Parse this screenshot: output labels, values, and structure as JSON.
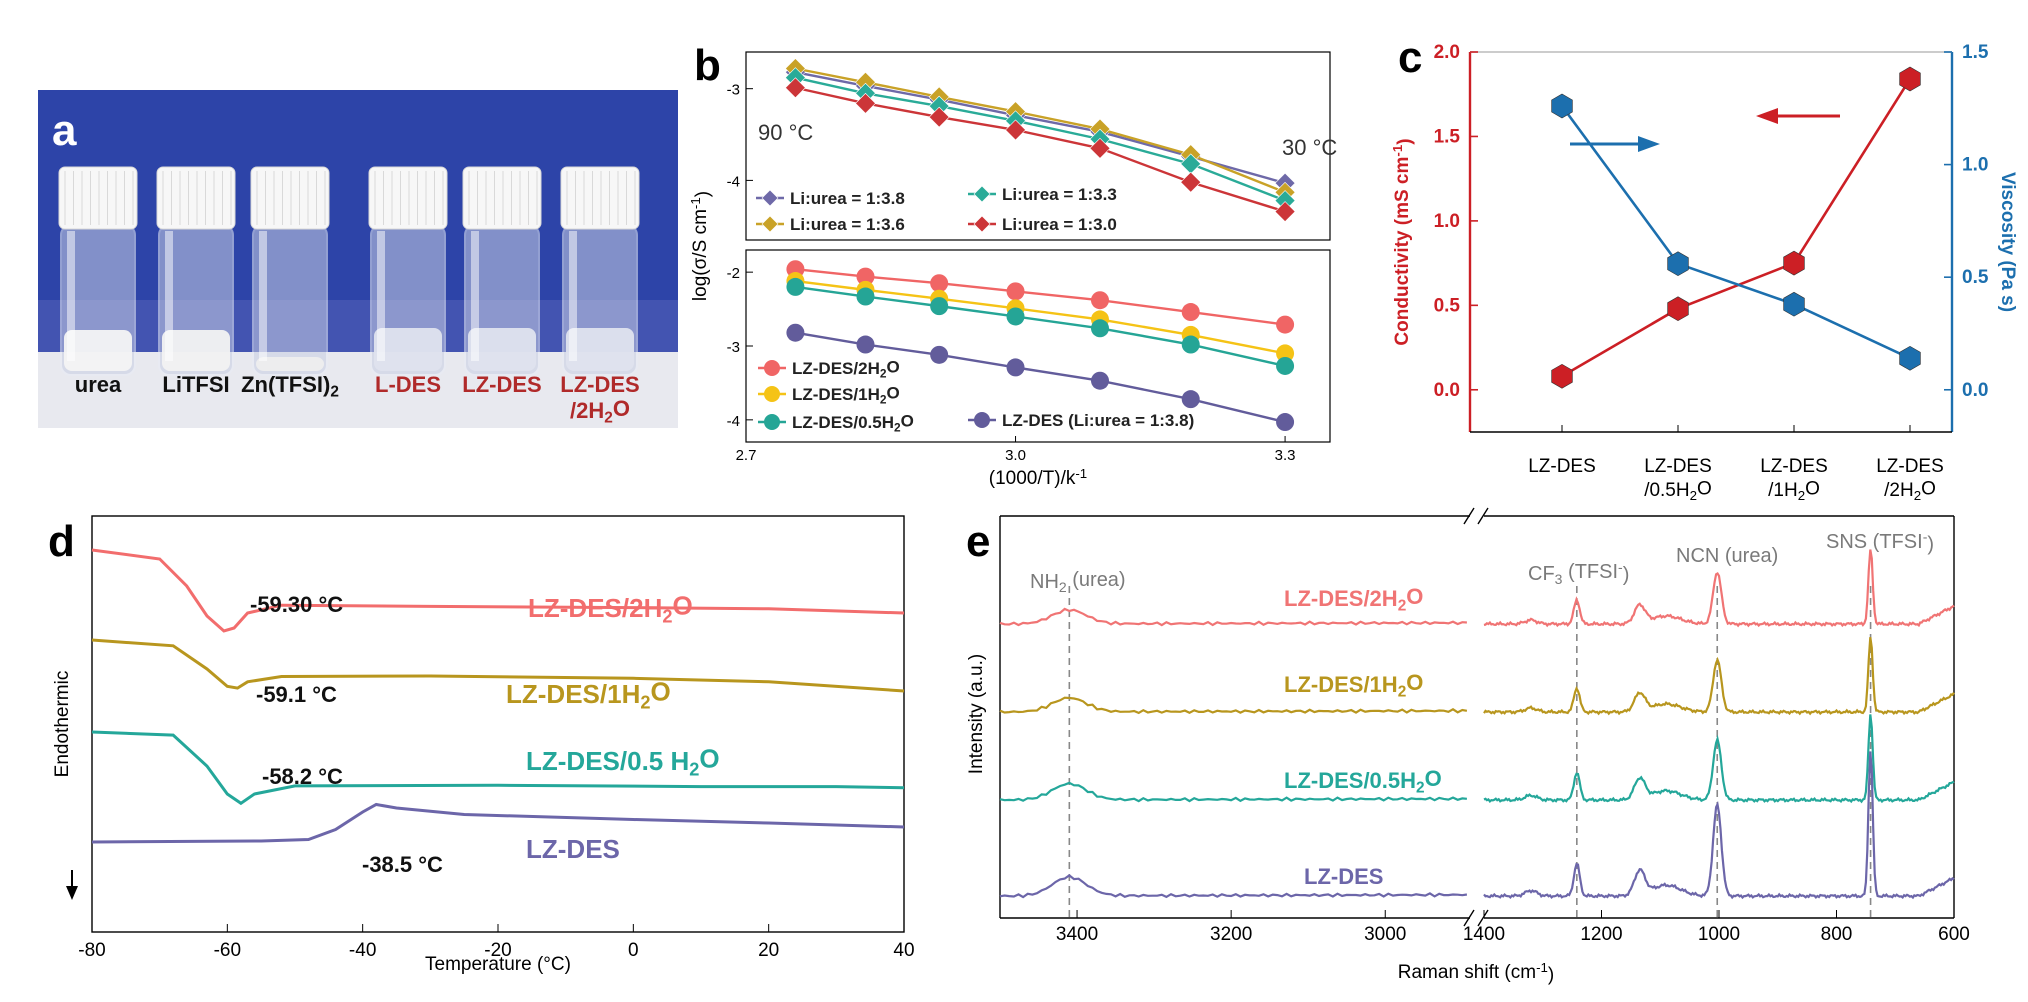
{
  "panels": {
    "a": {
      "label": "a",
      "vials": [
        "urea",
        "LiTFSI",
        "Zn(TFSI)2",
        "L-DES",
        "LZ-DES",
        "LZ-DES\n/2H2O"
      ]
    },
    "b": {
      "label": "b"
    },
    "c": {
      "label": "c"
    },
    "d": {
      "label": "d"
    },
    "e": {
      "label": "e"
    }
  },
  "chart_data": [
    {
      "id": "b-top",
      "type": "line",
      "x": [
        2.755,
        2.833,
        2.915,
        3.0,
        3.094,
        3.195,
        3.3
      ],
      "xlim": [
        2.7,
        3.35
      ],
      "ylim": [
        -4.65,
        -2.6
      ],
      "ylabel": "log(σ/S cm-1)",
      "yticks": [
        -3,
        -4
      ],
      "annotations": [
        {
          "text": "90 °C"
        },
        {
          "text": "30 °C"
        }
      ],
      "series": [
        {
          "name": "Li:urea = 1:3.8",
          "color": "#6e69a8",
          "marker": "diamond",
          "values": [
            -2.82,
            -2.97,
            -3.12,
            -3.29,
            -3.47,
            -3.74,
            -4.03
          ]
        },
        {
          "name": "Li:urea = 1:3.6",
          "color": "#c9a227",
          "marker": "diamond",
          "values": [
            -2.78,
            -2.93,
            -3.09,
            -3.25,
            -3.44,
            -3.72,
            -4.13
          ]
        },
        {
          "name": "Li:urea = 1:3.3",
          "color": "#2aab98",
          "marker": "diamond",
          "values": [
            -2.88,
            -3.05,
            -3.19,
            -3.35,
            -3.55,
            -3.82,
            -4.22
          ]
        },
        {
          "name": "Li:urea = 1:3.0",
          "color": "#cc3538",
          "marker": "diamond",
          "values": [
            -2.99,
            -3.16,
            -3.31,
            -3.45,
            -3.65,
            -4.02,
            -4.34
          ]
        }
      ]
    },
    {
      "id": "b-bottom",
      "type": "line",
      "x": [
        2.755,
        2.833,
        2.915,
        3.0,
        3.094,
        3.195,
        3.3
      ],
      "xlim": [
        2.7,
        3.35
      ],
      "ylim": [
        -4.3,
        -1.7
      ],
      "xlabel": "(1000/T)/k-1",
      "xticks": [
        2.7,
        3.0,
        3.3
      ],
      "yticks": [
        -2,
        -3,
        -4
      ],
      "series": [
        {
          "name": "LZ-DES/2H2O",
          "color": "#f06565",
          "marker": "circle",
          "values": [
            -1.96,
            -2.06,
            -2.15,
            -2.26,
            -2.38,
            -2.54,
            -2.71
          ]
        },
        {
          "name": "LZ-DES/1H2O",
          "color": "#f5c316",
          "marker": "circle",
          "values": [
            -2.12,
            -2.24,
            -2.36,
            -2.49,
            -2.64,
            -2.85,
            -3.1
          ]
        },
        {
          "name": "LZ-DES/0.5H2O",
          "color": "#25a596",
          "marker": "circle",
          "values": [
            -2.2,
            -2.33,
            -2.46,
            -2.6,
            -2.76,
            -2.98,
            -3.27
          ]
        },
        {
          "name": "LZ-DES (Li:urea = 1:3.8)",
          "color": "#625c9b",
          "marker": "circle",
          "values": [
            -2.82,
            -2.98,
            -3.12,
            -3.29,
            -3.47,
            -3.72,
            -4.03
          ]
        }
      ]
    },
    {
      "id": "c",
      "type": "line",
      "categories": [
        "LZ-DES",
        "LZ-DES\n/0.5H2O",
        "LZ-DES\n/1H2O",
        "LZ-DES\n/2H2O"
      ],
      "ylim": [
        -0.25,
        2.0
      ],
      "yticks": [
        0.0,
        0.5,
        1.0,
        1.5,
        2.0
      ],
      "y2lim": [
        -0.1875,
        1.5
      ],
      "y2ticks": [
        0.0,
        0.5,
        1.0,
        1.5
      ],
      "ylabel": "Conductivity (mS cm-1)",
      "y2label": "Viscosity (Pa s)",
      "series": [
        {
          "name": "Conductivity",
          "color": "#cc1f25",
          "axis": "left",
          "values": [
            0.08,
            0.48,
            0.75,
            1.84
          ]
        },
        {
          "name": "Viscosity",
          "color": "#1c6fae",
          "axis": "right",
          "values": [
            1.26,
            0.56,
            0.38,
            0.14
          ]
        }
      ]
    },
    {
      "id": "d",
      "type": "line",
      "xlim": [
        -80,
        40
      ],
      "xticks": [
        -80,
        -60,
        -40,
        -20,
        0,
        20,
        40
      ],
      "xlabel": "Temperature (°C)",
      "ylabel": "Endothermic",
      "series": [
        {
          "name": "LZ-DES/2H2O",
          "color": "#f26d6d",
          "tg": "-59.30 °C",
          "points": [
            [
              -80,
              0
            ],
            [
              -70,
              0.15
            ],
            [
              -66,
              0.6
            ],
            [
              -63,
              1.1
            ],
            [
              -60.5,
              1.35
            ],
            [
              -59,
              1.3
            ],
            [
              -57,
              1.05
            ],
            [
              -52,
              0.92
            ],
            [
              -30,
              0.94
            ],
            [
              0,
              0.96
            ],
            [
              20,
              0.98
            ],
            [
              40,
              1.05
            ]
          ]
        },
        {
          "name": "LZ-DES/1H2O",
          "color": "#b8961e",
          "tg": "-59.1 °C",
          "points": [
            [
              -80,
              0
            ],
            [
              -68,
              0.1
            ],
            [
              -63,
              0.5
            ],
            [
              -60,
              0.8
            ],
            [
              -58.5,
              0.83
            ],
            [
              -57,
              0.72
            ],
            [
              -52,
              0.63
            ],
            [
              -30,
              0.62
            ],
            [
              0,
              0.66
            ],
            [
              20,
              0.72
            ],
            [
              40,
              0.88
            ]
          ]
        },
        {
          "name": "LZ-DES/0.5 H2O",
          "color": "#24a79a",
          "tg": "-58.2 °C",
          "points": [
            [
              -80,
              0
            ],
            [
              -68,
              0.05
            ],
            [
              -63,
              0.55
            ],
            [
              -60,
              1.0
            ],
            [
              -58,
              1.15
            ],
            [
              -56,
              1.0
            ],
            [
              -50,
              0.87
            ],
            [
              -20,
              0.86
            ],
            [
              10,
              0.88
            ],
            [
              30,
              0.88
            ],
            [
              40,
              0.9
            ]
          ]
        },
        {
          "name": "LZ-DES",
          "color": "#6c66a9",
          "tg": "-38.5 °C",
          "points": [
            [
              -80,
              0
            ],
            [
              -55,
              -0.02
            ],
            [
              -48,
              -0.05
            ],
            [
              -44,
              -0.25
            ],
            [
              -40,
              -0.6
            ],
            [
              -38,
              -0.75
            ],
            [
              -35,
              -0.68
            ],
            [
              -25,
              -0.55
            ],
            [
              0,
              -0.45
            ],
            [
              20,
              -0.38
            ],
            [
              40,
              -0.3
            ]
          ]
        }
      ]
    },
    {
      "id": "e",
      "type": "line",
      "xlabel": "Raman shift (cm-1)",
      "ylabel": "Intensity (a.u.)",
      "xticks_left": [
        3400,
        3200,
        3000
      ],
      "xticks_right": [
        1400,
        1200,
        1000,
        800,
        600
      ],
      "xlim_left": [
        3500,
        2890
      ],
      "xlim_right": [
        1400,
        600
      ],
      "annotations": [
        {
          "text": "NH2 (urea)",
          "x": 3410
        },
        {
          "text": "CF3 (TFSI-)",
          "x": 1242
        },
        {
          "text": "NCN (urea)",
          "x": 1003
        },
        {
          "text": "SNS (TFSI-)",
          "x": 742
        }
      ],
      "series": [
        {
          "name": "LZ-DES/2H2O",
          "color": "#f07474"
        },
        {
          "name": "LZ-DES/1H2O",
          "color": "#b8961e"
        },
        {
          "name": "LZ-DES/0.5H2O",
          "color": "#24a79a"
        },
        {
          "name": "LZ-DES",
          "color": "#6c66a9"
        }
      ]
    }
  ]
}
